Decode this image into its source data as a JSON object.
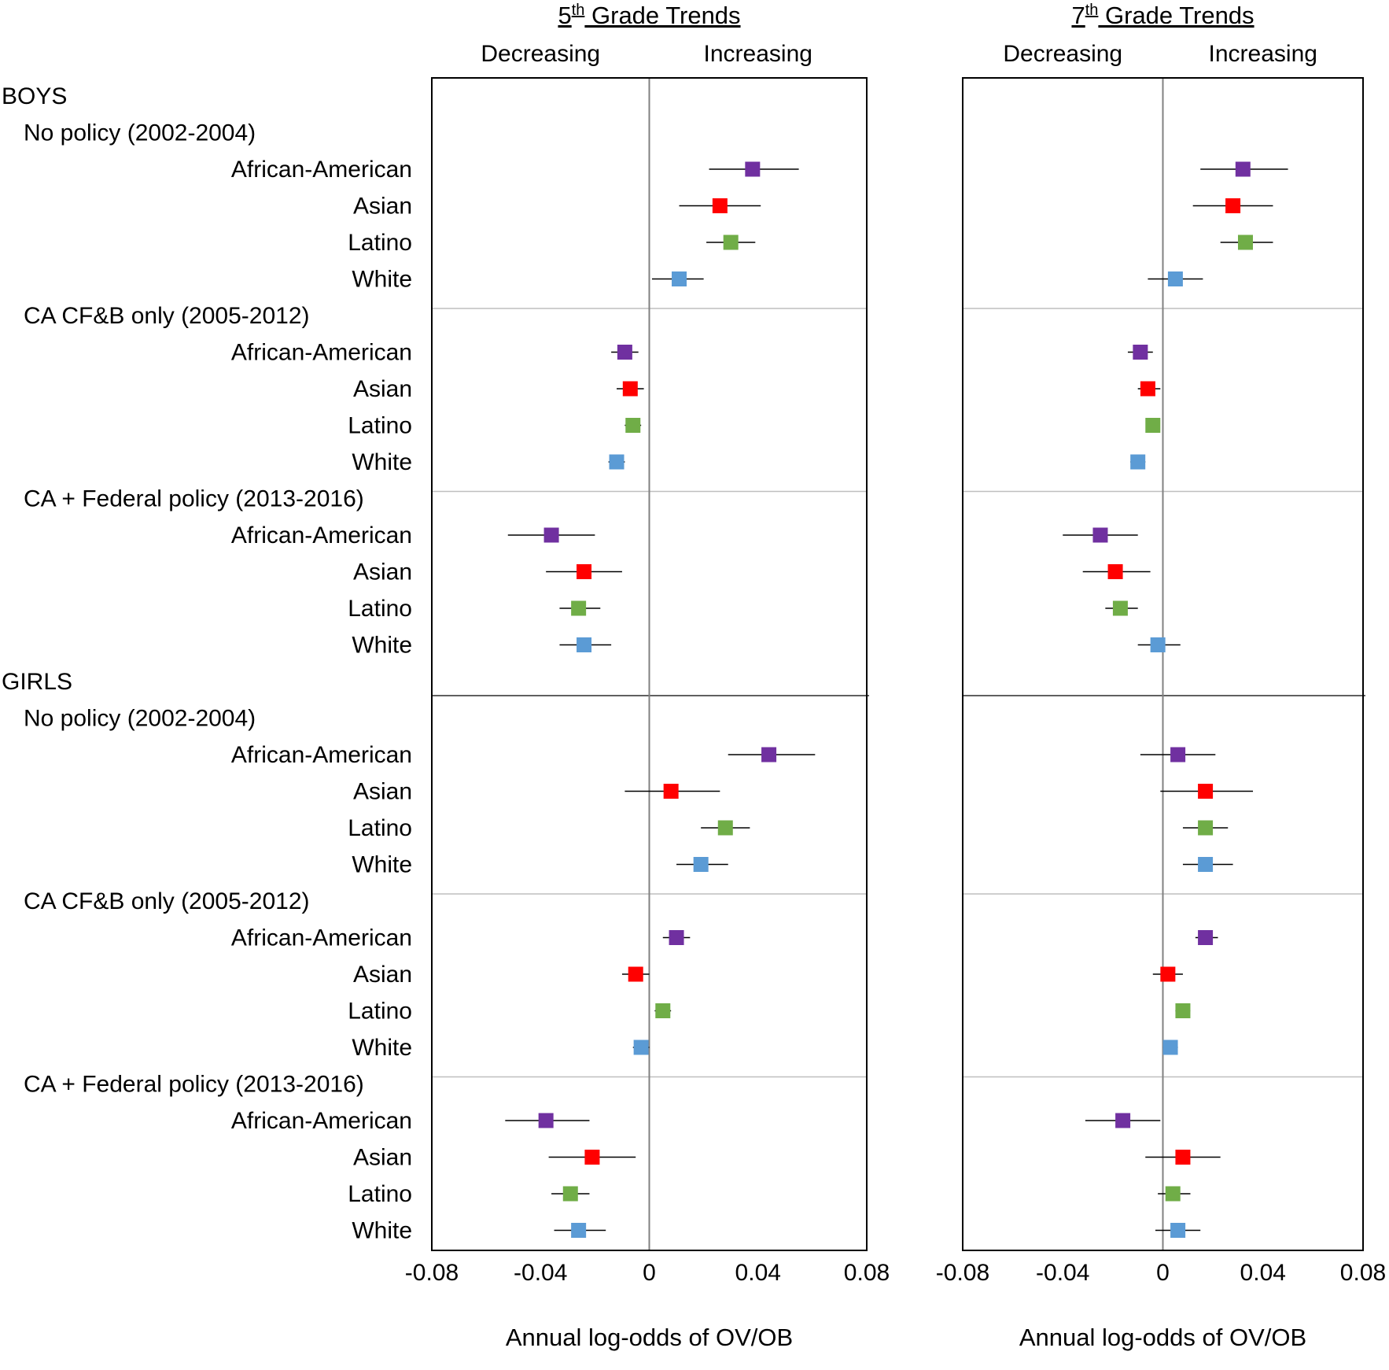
{
  "colors": {
    "African-American": "#7030a0",
    "Asian": "#ff0000",
    "Latino": "#70ad47",
    "White": "#5b9bd5",
    "errorbar": "#000000",
    "zero_line": "#808080",
    "separator": "#bfbfbf"
  },
  "row_labels": [
    {
      "text": "BOYS",
      "level": 0
    },
    {
      "text": "No policy (2002-2004)",
      "level": 1
    },
    {
      "text": "African-American",
      "level": 2,
      "group": "African-American"
    },
    {
      "text": "Asian",
      "level": 2,
      "group": "Asian"
    },
    {
      "text": "Latino",
      "level": 2,
      "group": "Latino"
    },
    {
      "text": "White",
      "level": 2,
      "group": "White"
    },
    {
      "text": "CA CF&B only (2005-2012)",
      "level": 1
    },
    {
      "text": "African-American",
      "level": 2,
      "group": "African-American"
    },
    {
      "text": "Asian",
      "level": 2,
      "group": "Asian"
    },
    {
      "text": "Latino",
      "level": 2,
      "group": "Latino"
    },
    {
      "text": "White",
      "level": 2,
      "group": "White"
    },
    {
      "text": "CA + Federal policy (2013-2016)",
      "level": 1
    },
    {
      "text": "African-American",
      "level": 2,
      "group": "African-American"
    },
    {
      "text": "Asian",
      "level": 2,
      "group": "Asian"
    },
    {
      "text": "Latino",
      "level": 2,
      "group": "Latino"
    },
    {
      "text": "White",
      "level": 2,
      "group": "White"
    },
    {
      "text": "GIRLS",
      "level": 0
    },
    {
      "text": "No policy (2002-2004)",
      "level": 1
    },
    {
      "text": "African-American",
      "level": 2,
      "group": "African-American"
    },
    {
      "text": "Asian",
      "level": 2,
      "group": "Asian"
    },
    {
      "text": "Latino",
      "level": 2,
      "group": "Latino"
    },
    {
      "text": "White",
      "level": 2,
      "group": "White"
    },
    {
      "text": "CA CF&B only (2005-2012)",
      "level": 1
    },
    {
      "text": "African-American",
      "level": 2,
      "group": "African-American"
    },
    {
      "text": "Asian",
      "level": 2,
      "group": "Asian"
    },
    {
      "text": "Latino",
      "level": 2,
      "group": "Latino"
    },
    {
      "text": "White",
      "level": 2,
      "group": "White"
    },
    {
      "text": "CA + Federal policy (2013-2016)",
      "level": 1
    },
    {
      "text": "African-American",
      "level": 2,
      "group": "African-American"
    },
    {
      "text": "Asian",
      "level": 2,
      "group": "Asian"
    },
    {
      "text": "Latino",
      "level": 2,
      "group": "Latino"
    },
    {
      "text": "White",
      "level": 2,
      "group": "White"
    }
  ],
  "chart_data": [
    {
      "type": "scatter",
      "subtype": "forest-plot",
      "title_base": "5",
      "title_sup": "th",
      "title_rest": " Grade Trends",
      "direction_left": "Decreasing",
      "direction_right": "Increasing",
      "xlabel": "Annual log-odds of OV/OB",
      "xlim": [
        -0.08,
        0.08
      ],
      "xticks": [
        -0.08,
        -0.04,
        0,
        0.04,
        0.08
      ],
      "xtick_labels": [
        "-0.08",
        "-0.04",
        "0",
        "0.04",
        "0.08"
      ],
      "points": [
        {
          "sex": "BOYS",
          "period": "No policy (2002-2004)",
          "group": "African-American",
          "est": 0.038,
          "lo": 0.022,
          "hi": 0.055
        },
        {
          "sex": "BOYS",
          "period": "No policy (2002-2004)",
          "group": "Asian",
          "est": 0.026,
          "lo": 0.011,
          "hi": 0.041
        },
        {
          "sex": "BOYS",
          "period": "No policy (2002-2004)",
          "group": "Latino",
          "est": 0.03,
          "lo": 0.021,
          "hi": 0.039
        },
        {
          "sex": "BOYS",
          "period": "No policy (2002-2004)",
          "group": "White",
          "est": 0.011,
          "lo": 0.001,
          "hi": 0.02
        },
        {
          "sex": "BOYS",
          "period": "CA CF&B only (2005-2012)",
          "group": "African-American",
          "est": -0.009,
          "lo": -0.014,
          "hi": -0.004
        },
        {
          "sex": "BOYS",
          "period": "CA CF&B only (2005-2012)",
          "group": "Asian",
          "est": -0.007,
          "lo": -0.012,
          "hi": -0.002
        },
        {
          "sex": "BOYS",
          "period": "CA CF&B only (2005-2012)",
          "group": "Latino",
          "est": -0.006,
          "lo": -0.009,
          "hi": -0.003
        },
        {
          "sex": "BOYS",
          "period": "CA CF&B only (2005-2012)",
          "group": "White",
          "est": -0.012,
          "lo": -0.015,
          "hi": -0.009
        },
        {
          "sex": "BOYS",
          "period": "CA + Federal policy (2013-2016)",
          "group": "African-American",
          "est": -0.036,
          "lo": -0.052,
          "hi": -0.02
        },
        {
          "sex": "BOYS",
          "period": "CA + Federal policy (2013-2016)",
          "group": "Asian",
          "est": -0.024,
          "lo": -0.038,
          "hi": -0.01
        },
        {
          "sex": "BOYS",
          "period": "CA + Federal policy (2013-2016)",
          "group": "Latino",
          "est": -0.026,
          "lo": -0.033,
          "hi": -0.018
        },
        {
          "sex": "BOYS",
          "period": "CA + Federal policy (2013-2016)",
          "group": "White",
          "est": -0.024,
          "lo": -0.033,
          "hi": -0.014
        },
        {
          "sex": "GIRLS",
          "period": "No policy (2002-2004)",
          "group": "African-American",
          "est": 0.044,
          "lo": 0.029,
          "hi": 0.061
        },
        {
          "sex": "GIRLS",
          "period": "No policy (2002-2004)",
          "group": "Asian",
          "est": 0.008,
          "lo": -0.009,
          "hi": 0.026
        },
        {
          "sex": "GIRLS",
          "period": "No policy (2002-2004)",
          "group": "Latino",
          "est": 0.028,
          "lo": 0.019,
          "hi": 0.037
        },
        {
          "sex": "GIRLS",
          "period": "No policy (2002-2004)",
          "group": "White",
          "est": 0.019,
          "lo": 0.01,
          "hi": 0.029
        },
        {
          "sex": "GIRLS",
          "period": "CA CF&B only (2005-2012)",
          "group": "African-American",
          "est": 0.01,
          "lo": 0.005,
          "hi": 0.015
        },
        {
          "sex": "GIRLS",
          "period": "CA CF&B only (2005-2012)",
          "group": "Asian",
          "est": -0.005,
          "lo": -0.01,
          "hi": 0.0
        },
        {
          "sex": "GIRLS",
          "period": "CA CF&B only (2005-2012)",
          "group": "Latino",
          "est": 0.005,
          "lo": 0.002,
          "hi": 0.008
        },
        {
          "sex": "GIRLS",
          "period": "CA CF&B only (2005-2012)",
          "group": "White",
          "est": -0.003,
          "lo": -0.006,
          "hi": 0.0
        },
        {
          "sex": "GIRLS",
          "period": "CA + Federal policy (2013-2016)",
          "group": "African-American",
          "est": -0.038,
          "lo": -0.053,
          "hi": -0.022
        },
        {
          "sex": "GIRLS",
          "period": "CA + Federal policy (2013-2016)",
          "group": "Asian",
          "est": -0.021,
          "lo": -0.037,
          "hi": -0.005
        },
        {
          "sex": "GIRLS",
          "period": "CA + Federal policy (2013-2016)",
          "group": "Latino",
          "est": -0.029,
          "lo": -0.036,
          "hi": -0.022
        },
        {
          "sex": "GIRLS",
          "period": "CA + Federal policy (2013-2016)",
          "group": "White",
          "est": -0.026,
          "lo": -0.035,
          "hi": -0.016
        }
      ]
    },
    {
      "type": "scatter",
      "subtype": "forest-plot",
      "title_base": "7",
      "title_sup": "th",
      "title_rest": " Grade Trends",
      "direction_left": "Decreasing",
      "direction_right": "Increasing",
      "xlabel": "Annual log-odds of OV/OB",
      "xlim": [
        -0.08,
        0.08
      ],
      "xticks": [
        -0.08,
        -0.04,
        0,
        0.04,
        0.08
      ],
      "xtick_labels": [
        "-0.08",
        "-0.04",
        "0",
        "0.04",
        "0.08"
      ],
      "points": [
        {
          "sex": "BOYS",
          "period": "No policy (2002-2004)",
          "group": "African-American",
          "est": 0.032,
          "lo": 0.015,
          "hi": 0.05
        },
        {
          "sex": "BOYS",
          "period": "No policy (2002-2004)",
          "group": "Asian",
          "est": 0.028,
          "lo": 0.012,
          "hi": 0.044
        },
        {
          "sex": "BOYS",
          "period": "No policy (2002-2004)",
          "group": "Latino",
          "est": 0.033,
          "lo": 0.023,
          "hi": 0.044
        },
        {
          "sex": "BOYS",
          "period": "No policy (2002-2004)",
          "group": "White",
          "est": 0.005,
          "lo": -0.006,
          "hi": 0.016
        },
        {
          "sex": "BOYS",
          "period": "CA CF&B only (2005-2012)",
          "group": "African-American",
          "est": -0.009,
          "lo": -0.014,
          "hi": -0.004
        },
        {
          "sex": "BOYS",
          "period": "CA CF&B only (2005-2012)",
          "group": "Asian",
          "est": -0.006,
          "lo": -0.01,
          "hi": -0.001
        },
        {
          "sex": "BOYS",
          "period": "CA CF&B only (2005-2012)",
          "group": "Latino",
          "est": -0.004,
          "lo": -0.006,
          "hi": -0.002
        },
        {
          "sex": "BOYS",
          "period": "CA CF&B only (2005-2012)",
          "group": "White",
          "est": -0.01,
          "lo": -0.013,
          "hi": -0.007
        },
        {
          "sex": "BOYS",
          "period": "CA + Federal policy (2013-2016)",
          "group": "African-American",
          "est": -0.025,
          "lo": -0.04,
          "hi": -0.01
        },
        {
          "sex": "BOYS",
          "period": "CA + Federal policy (2013-2016)",
          "group": "Asian",
          "est": -0.019,
          "lo": -0.032,
          "hi": -0.005
        },
        {
          "sex": "BOYS",
          "period": "CA + Federal policy (2013-2016)",
          "group": "Latino",
          "est": -0.017,
          "lo": -0.023,
          "hi": -0.01
        },
        {
          "sex": "BOYS",
          "period": "CA + Federal policy (2013-2016)",
          "group": "White",
          "est": -0.002,
          "lo": -0.01,
          "hi": 0.007
        },
        {
          "sex": "GIRLS",
          "period": "No policy (2002-2004)",
          "group": "African-American",
          "est": 0.006,
          "lo": -0.009,
          "hi": 0.021
        },
        {
          "sex": "GIRLS",
          "period": "No policy (2002-2004)",
          "group": "Asian",
          "est": 0.017,
          "lo": -0.001,
          "hi": 0.036
        },
        {
          "sex": "GIRLS",
          "period": "No policy (2002-2004)",
          "group": "Latino",
          "est": 0.017,
          "lo": 0.008,
          "hi": 0.026
        },
        {
          "sex": "GIRLS",
          "period": "No policy (2002-2004)",
          "group": "White",
          "est": 0.017,
          "lo": 0.008,
          "hi": 0.028
        },
        {
          "sex": "GIRLS",
          "period": "CA CF&B only (2005-2012)",
          "group": "African-American",
          "est": 0.017,
          "lo": 0.013,
          "hi": 0.022
        },
        {
          "sex": "GIRLS",
          "period": "CA CF&B only (2005-2012)",
          "group": "Asian",
          "est": 0.002,
          "lo": -0.004,
          "hi": 0.008
        },
        {
          "sex": "GIRLS",
          "period": "CA CF&B only (2005-2012)",
          "group": "Latino",
          "est": 0.008,
          "lo": 0.005,
          "hi": 0.011
        },
        {
          "sex": "GIRLS",
          "period": "CA CF&B only (2005-2012)",
          "group": "White",
          "est": 0.003,
          "lo": 0.0,
          "hi": 0.006
        },
        {
          "sex": "GIRLS",
          "period": "CA + Federal policy (2013-2016)",
          "group": "African-American",
          "est": -0.016,
          "lo": -0.031,
          "hi": -0.001
        },
        {
          "sex": "GIRLS",
          "period": "CA + Federal policy (2013-2016)",
          "group": "Asian",
          "est": 0.008,
          "lo": -0.007,
          "hi": 0.023
        },
        {
          "sex": "GIRLS",
          "period": "CA + Federal policy (2013-2016)",
          "group": "Latino",
          "est": 0.004,
          "lo": -0.002,
          "hi": 0.011
        },
        {
          "sex": "GIRLS",
          "period": "CA + Federal policy (2013-2016)",
          "group": "White",
          "est": 0.006,
          "lo": -0.003,
          "hi": 0.015
        }
      ]
    }
  ]
}
